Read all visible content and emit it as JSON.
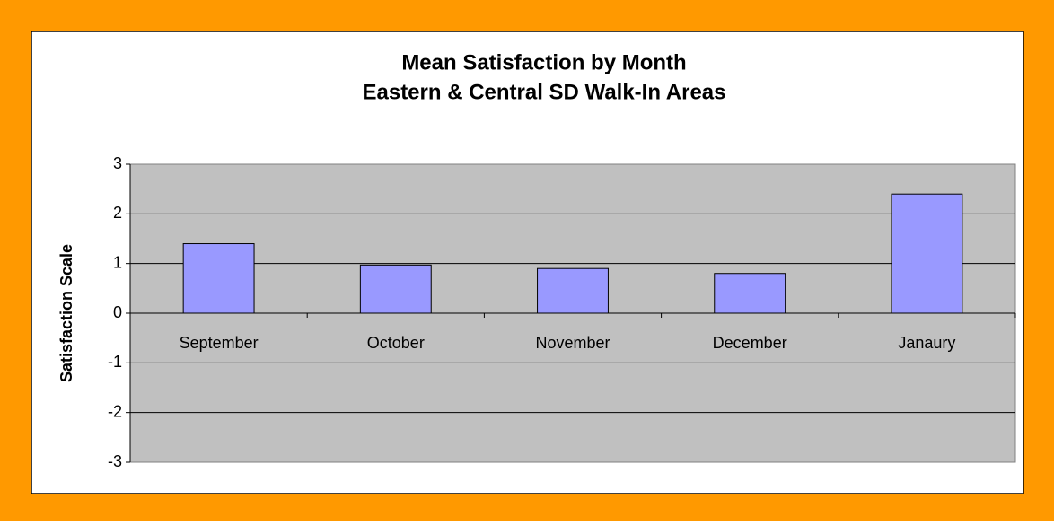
{
  "chart_data": {
    "type": "bar",
    "title": "Mean Satisfaction by Month",
    "subtitle": "Eastern & Central SD Walk-In Areas",
    "y_label": "Satisfaction Scale",
    "categories": [
      "September",
      "October",
      "November",
      "December",
      "Janaury"
    ],
    "values": [
      1.4,
      0.97,
      0.9,
      0.8,
      2.4
    ],
    "color": "#9999ff",
    "ylim": [
      -3,
      3
    ],
    "yticks": [
      -3,
      -2,
      -1,
      0,
      1,
      2,
      3
    ],
    "grid": true
  }
}
